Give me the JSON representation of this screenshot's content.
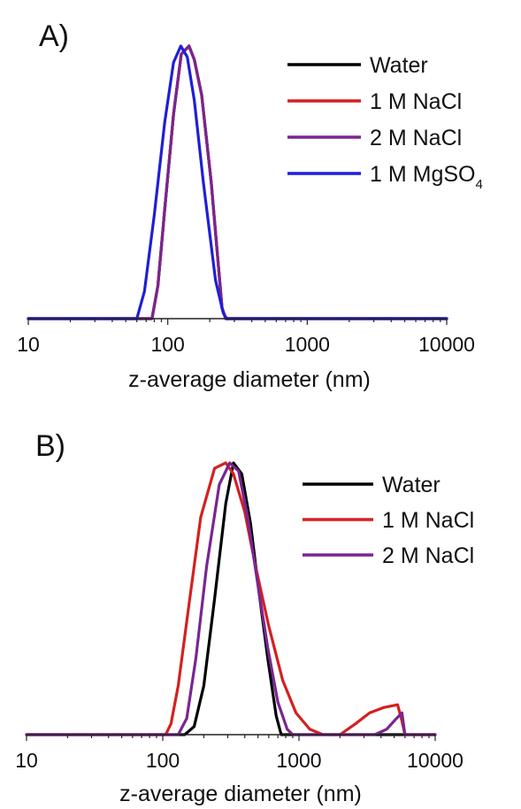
{
  "chart_data": [
    {
      "type": "line",
      "panel_label": "A)",
      "xlabel": "z-average diameter (nm)",
      "ylabel": "",
      "xscale": "log",
      "xlim": [
        10,
        10000
      ],
      "ylim": [
        0,
        1
      ],
      "xticks": [
        "10",
        "100",
        "1000",
        "10000"
      ],
      "grid": false,
      "legend_position": "top-right",
      "series": [
        {
          "name": "Water",
          "color": "#000000",
          "x": [
            10,
            77,
            85,
            95,
            110,
            125,
            142,
            155,
            175,
            205,
            245,
            260,
            10000
          ],
          "y": [
            0,
            0,
            0.12,
            0.4,
            0.75,
            0.97,
            1.0,
            0.95,
            0.82,
            0.5,
            0.04,
            0,
            0
          ]
        },
        {
          "name": "1 M NaCl",
          "color": "#d42020",
          "x": [
            10,
            77,
            85,
            95,
            110,
            125,
            142,
            155,
            175,
            205,
            245,
            260,
            10000
          ],
          "y": [
            0,
            0,
            0.12,
            0.4,
            0.75,
            0.97,
            1.0,
            0.95,
            0.82,
            0.5,
            0.04,
            0,
            0
          ]
        },
        {
          "name": "2 M NaCl",
          "color": "#7a2590",
          "x": [
            10,
            77,
            85,
            95,
            110,
            125,
            142,
            155,
            175,
            205,
            245,
            260,
            10000
          ],
          "y": [
            0,
            0,
            0.12,
            0.4,
            0.75,
            0.97,
            1.0,
            0.95,
            0.82,
            0.5,
            0.04,
            0,
            0
          ]
        },
        {
          "name": "1 M MgSO",
          "subscript": "4",
          "color": "#1f1fd6",
          "x": [
            10,
            60,
            68,
            80,
            95,
            110,
            124,
            138,
            155,
            180,
            220,
            250,
            265,
            10000
          ],
          "y": [
            0,
            0,
            0.1,
            0.38,
            0.72,
            0.94,
            1.0,
            0.96,
            0.8,
            0.5,
            0.14,
            0.02,
            0,
            0
          ]
        }
      ]
    },
    {
      "type": "line",
      "panel_label": "B)",
      "xlabel": "z-average diameter (nm)",
      "ylabel": "",
      "xscale": "log",
      "xlim": [
        10,
        10000
      ],
      "ylim": [
        0,
        1
      ],
      "xticks": [
        "10",
        "100",
        "1000",
        "10000"
      ],
      "grid": false,
      "legend_position": "top-right",
      "series": [
        {
          "name": "Water",
          "color": "#000000",
          "x": [
            10,
            145,
            170,
            200,
            240,
            290,
            330,
            380,
            440,
            510,
            590,
            680,
            740,
            10000
          ],
          "y": [
            0,
            0,
            0.03,
            0.18,
            0.5,
            0.85,
            1.0,
            0.96,
            0.78,
            0.52,
            0.28,
            0.07,
            0,
            0
          ]
        },
        {
          "name": "1 M NaCl",
          "color": "#d42020",
          "x": [
            10,
            105,
            115,
            130,
            155,
            190,
            240,
            290,
            330,
            400,
            480,
            600,
            760,
            950,
            1200,
            1500,
            2000,
            2600,
            3300,
            4200,
            5300,
            5700,
            6000,
            10000
          ],
          "y": [
            0,
            0,
            0.04,
            0.18,
            0.47,
            0.8,
            0.98,
            1.0,
            0.96,
            0.82,
            0.62,
            0.4,
            0.2,
            0.08,
            0.02,
            0,
            0,
            0.04,
            0.08,
            0.1,
            0.11,
            0.05,
            0,
            0
          ]
        },
        {
          "name": "2 M NaCl",
          "color": "#7a2590",
          "x": [
            10,
            130,
            150,
            175,
            210,
            260,
            310,
            360,
            420,
            500,
            590,
            700,
            820,
            900,
            3600,
            4400,
            5200,
            5700,
            6000,
            10000
          ],
          "y": [
            0,
            0,
            0.06,
            0.28,
            0.62,
            0.92,
            1.0,
            0.97,
            0.8,
            0.55,
            0.32,
            0.12,
            0.02,
            0,
            0,
            0.02,
            0.06,
            0.08,
            0,
            0
          ]
        }
      ]
    }
  ]
}
